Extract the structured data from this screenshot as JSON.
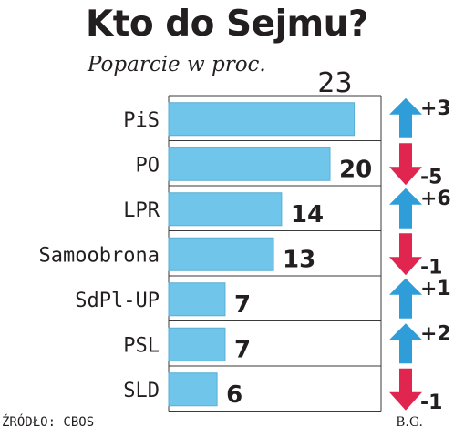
{
  "chart_data": {
    "type": "bar",
    "orientation": "horizontal",
    "title": "Kto do Sejmu?",
    "subtitle": "Poparcie w proc.",
    "categories": [
      "PiS",
      "PO",
      "LPR",
      "Samoobrona",
      "SdPl-UP",
      "PSL",
      "SLD"
    ],
    "values": [
      23,
      20,
      14,
      13,
      7,
      7,
      6
    ],
    "changes": [
      "+3",
      "-5",
      "+6",
      "-1",
      "+1",
      "+2",
      "-1"
    ],
    "xlim": [
      0,
      26
    ],
    "grid": true,
    "source": "ŹRÓDŁO: CBOS",
    "author": "B.G."
  },
  "colors": {
    "bar": "#6fc6ea",
    "bar_stroke": "#5aaed4",
    "up_arrow": "#2f9ed8",
    "down_arrow": "#e0264e",
    "grid": "#3a3a3a",
    "text": "#231f20"
  },
  "icons": {
    "increase": "arrow-up-icon",
    "decrease": "arrow-down-icon"
  }
}
